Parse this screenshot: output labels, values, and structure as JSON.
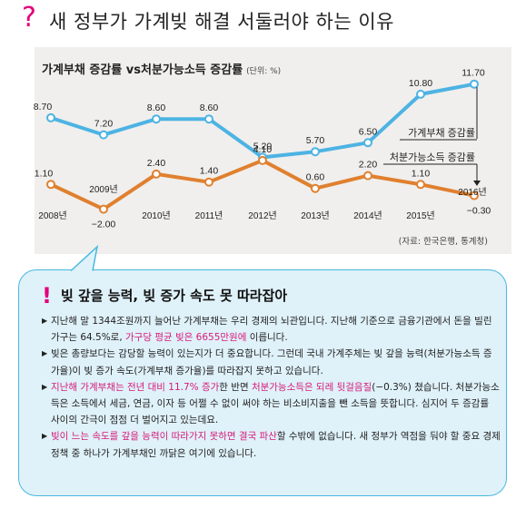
{
  "header": {
    "icon": "question-mark-icon",
    "title": "새 정부가 가계빚 해결 서둘러야 하는 이유"
  },
  "chart_title": "가계부채 증감률 vs처분가능소득 증감률",
  "chart_unit": "(단위: %)",
  "chart_data": {
    "type": "line",
    "title": "가계부채 증감률 vs처분가능소득 증감률",
    "unit": "(단위: %)",
    "categories": [
      "2008년",
      "2009년",
      "2010년",
      "2011년",
      "2012년",
      "2013년",
      "2014년",
      "2015년",
      "2016년"
    ],
    "series": [
      {
        "name": "가계부채 증감률",
        "color": "#4db3e3",
        "values": [
          8.7,
          7.2,
          8.6,
          8.6,
          5.2,
          5.7,
          6.5,
          10.8,
          11.7
        ],
        "labels": [
          "8.70",
          "7.20",
          "8.60",
          "8.60",
          "5.20",
          "5.70",
          "6.50",
          "10.80",
          "11.70"
        ]
      },
      {
        "name": "처분가능소득 증감률",
        "color": "#e0802f",
        "values": [
          1.1,
          -2.0,
          2.4,
          1.4,
          4.1,
          0.6,
          2.2,
          1.1,
          -0.3
        ],
        "labels": [
          "1.10",
          "-2.00",
          "2.40",
          "1.40",
          "4.10",
          "0.60",
          "2.20",
          "1.10",
          "-0.30"
        ]
      }
    ],
    "source": "(자료: 한국은행, 통계청)"
  },
  "source": "(자료: 한국은행, 통계청)",
  "box": {
    "icon": "exclamation-icon",
    "title": "빚 갚을 능력, 빚 증가 속도 못 따라잡아",
    "paragraphs": [
      [
        {
          "t": "지난해 말 1344조원까지 늘어난 가계부채는 우리 경제의 뇌관입니다. 지난해 기준으로 금융기관에서 돈을 빌린 가구는 64.5%로, ",
          "h": false
        },
        {
          "t": "가구당 평균 빚은 6655만원에",
          "h": true
        },
        {
          "t": " 이릅니다.",
          "h": false
        }
      ],
      [
        {
          "t": "빚은 총량보다는 감당할 능력이 있는지가 더 중요합니다. 그런데 국내 가계주체는 빚 갚을 능력(처분가능소득 증가율)이 빚 증가 속도(가계부채 증가율)를 따라잡지 못하고 있습니다.",
          "h": false
        }
      ],
      [
        {
          "t": "지난해 가계부채는 전년 대비 11.7% 증가",
          "h": true
        },
        {
          "t": "한 반면 ",
          "h": false
        },
        {
          "t": "처분가능소득은 되레 뒷걸음질",
          "h": true
        },
        {
          "t": "(−0.3%) 쳤습니다. 처분가능소득은 소득에서 세금, 연금, 이자 등 어쩔 수 없이 써야 하는 비소비지출을 뺀 소득을 뜻합니다. 심지어 두 증감률 사이의 간극이 점점 더 벌어지고 있는데요.",
          "h": false
        }
      ],
      [
        {
          "t": "빚이 느는 속도를 갚을 능력이 따라가지 못하면 결국 파산",
          "h": true
        },
        {
          "t": "할 수밖에 없습니다. 새 정부가 역점을 둬야 할 중요 경제정책 중 하나가 가계부채인 까닭은 여기에 있습니다.",
          "h": false
        }
      ]
    ]
  }
}
